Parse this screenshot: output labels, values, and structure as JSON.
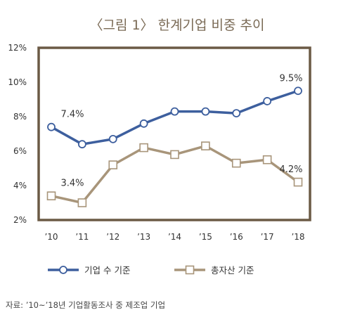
{
  "title": "〈그림 1〉 한계기업 비중 추이",
  "source": "자료: ’10~’18년 기업활동조사 중 제조업 기업",
  "colors": {
    "frame": "#6b5a45",
    "title": "#7a6a55",
    "series_1": "#3d5f9e",
    "series_2": "#a8957a"
  },
  "chart_data": {
    "type": "line",
    "title": "〈그림 1〉 한계기업 비중 추이",
    "categories": [
      "’10",
      "’11",
      "’12",
      "’13",
      "’14",
      "’15",
      "’16",
      "’17",
      "’18"
    ],
    "ylim": [
      2,
      12
    ],
    "yticks": [
      "2%",
      "4%",
      "6%",
      "8%",
      "10%",
      "12%"
    ],
    "yticks_values": [
      2,
      4,
      6,
      8,
      10,
      12
    ],
    "grid": false,
    "legend_position": "bottom",
    "series": [
      {
        "name": "기업 수 기준",
        "marker": "circle",
        "color": "#3d5f9e",
        "values": [
          7.4,
          6.4,
          6.7,
          7.6,
          8.3,
          8.3,
          8.2,
          8.9,
          9.5
        ]
      },
      {
        "name": "총자산 기준",
        "marker": "square",
        "color": "#a8957a",
        "values": [
          3.4,
          3.0,
          5.2,
          6.2,
          5.8,
          6.3,
          5.3,
          5.5,
          4.2
        ]
      }
    ],
    "annotations": [
      {
        "series": 0,
        "index": 0,
        "text": "7.4%"
      },
      {
        "series": 0,
        "index": 8,
        "text": "9.5%"
      },
      {
        "series": 1,
        "index": 0,
        "text": "3.4%"
      },
      {
        "series": 1,
        "index": 8,
        "text": "4.2%"
      }
    ]
  }
}
